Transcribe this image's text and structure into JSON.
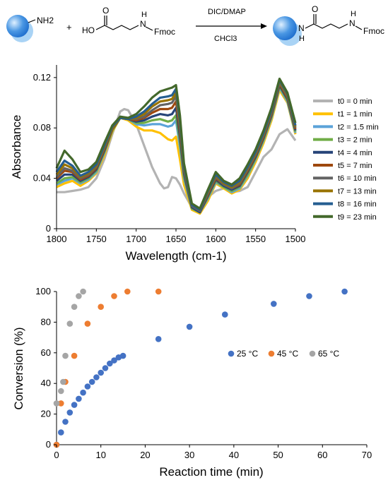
{
  "scheme": {
    "reagent_left": "NH2",
    "plus": "+",
    "acid_ho": "HO",
    "acid_o": "O",
    "acid_nh": "H",
    "acid_n": "N",
    "acid_fmoc": "Fmoc",
    "conditions_top": "DIC/DMAP",
    "conditions_bottom": "CHCl3",
    "product_n": "N",
    "product_h": "H",
    "product_o": "O",
    "product_nh_h": "H",
    "product_nh_n": "N",
    "product_fmoc": "Fmoc",
    "colors": {
      "bead_light": "#a9d3f5",
      "bead_mid": "#4a97e3",
      "bead_dark": "#1f6fce"
    }
  },
  "chart_data": [
    {
      "type": "line",
      "title": "",
      "xlabel": "Wavelength (cm-1)",
      "ylabel": "Absorbance",
      "xlim": [
        1800,
        1500
      ],
      "ylim": [
        0,
        0.13
      ],
      "xticks": [
        "1800",
        "1750",
        "1700",
        "1650",
        "1600",
        "1550",
        "1500"
      ],
      "yticks": [
        "0",
        "0.04",
        "0.08",
        "0.12"
      ],
      "legend_position": "right",
      "series": [
        {
          "name": "t0 = 0 min",
          "color": "#b3b3b3",
          "x": [
            1800,
            1790,
            1780,
            1770,
            1760,
            1750,
            1740,
            1730,
            1720,
            1715,
            1710,
            1700,
            1690,
            1680,
            1670,
            1665,
            1660,
            1655,
            1650,
            1645,
            1640,
            1630,
            1620,
            1610,
            1600,
            1590,
            1580,
            1570,
            1560,
            1550,
            1540,
            1530,
            1520,
            1510,
            1500
          ],
          "y": [
            0.029,
            0.029,
            0.03,
            0.031,
            0.033,
            0.04,
            0.055,
            0.075,
            0.093,
            0.095,
            0.094,
            0.083,
            0.066,
            0.049,
            0.036,
            0.032,
            0.033,
            0.041,
            0.04,
            0.035,
            0.028,
            0.017,
            0.013,
            0.025,
            0.03,
            0.032,
            0.029,
            0.03,
            0.033,
            0.045,
            0.057,
            0.063,
            0.075,
            0.079,
            0.07
          ]
        },
        {
          "name": "t1 = 1 min",
          "color": "#ffc000",
          "x": [
            1800,
            1790,
            1780,
            1770,
            1760,
            1750,
            1740,
            1730,
            1720,
            1710,
            1700,
            1690,
            1680,
            1670,
            1660,
            1655,
            1650,
            1645,
            1640,
            1630,
            1620,
            1610,
            1600,
            1590,
            1580,
            1570,
            1560,
            1550,
            1540,
            1530,
            1520,
            1510,
            1500
          ],
          "y": [
            0.033,
            0.036,
            0.038,
            0.034,
            0.038,
            0.044,
            0.058,
            0.077,
            0.088,
            0.086,
            0.081,
            0.078,
            0.078,
            0.076,
            0.071,
            0.07,
            0.073,
            0.055,
            0.035,
            0.015,
            0.012,
            0.022,
            0.036,
            0.032,
            0.028,
            0.031,
            0.04,
            0.053,
            0.068,
            0.086,
            0.11,
            0.1,
            0.075
          ]
        },
        {
          "name": "t2 = 1.5 min",
          "color": "#5ba3d9",
          "x": [
            1800,
            1790,
            1780,
            1770,
            1760,
            1750,
            1740,
            1730,
            1720,
            1710,
            1700,
            1690,
            1680,
            1670,
            1660,
            1655,
            1650,
            1645,
            1640,
            1630,
            1620,
            1610,
            1600,
            1590,
            1580,
            1570,
            1560,
            1550,
            1540,
            1530,
            1520,
            1510,
            1500
          ],
          "y": [
            0.035,
            0.038,
            0.04,
            0.036,
            0.039,
            0.045,
            0.06,
            0.078,
            0.088,
            0.087,
            0.083,
            0.082,
            0.083,
            0.083,
            0.081,
            0.082,
            0.086,
            0.065,
            0.04,
            0.016,
            0.013,
            0.024,
            0.037,
            0.033,
            0.029,
            0.032,
            0.042,
            0.055,
            0.07,
            0.088,
            0.112,
            0.101,
            0.076
          ]
        },
        {
          "name": "t3 = 2 min",
          "color": "#70ad47",
          "x": [
            1800,
            1790,
            1780,
            1770,
            1760,
            1750,
            1740,
            1730,
            1720,
            1710,
            1700,
            1690,
            1680,
            1670,
            1660,
            1655,
            1650,
            1645,
            1640,
            1630,
            1620,
            1610,
            1600,
            1590,
            1580,
            1570,
            1560,
            1550,
            1540,
            1530,
            1520,
            1510,
            1500
          ],
          "y": [
            0.036,
            0.04,
            0.041,
            0.037,
            0.04,
            0.046,
            0.061,
            0.078,
            0.088,
            0.087,
            0.084,
            0.084,
            0.086,
            0.087,
            0.085,
            0.086,
            0.09,
            0.069,
            0.042,
            0.016,
            0.013,
            0.025,
            0.038,
            0.033,
            0.03,
            0.033,
            0.043,
            0.056,
            0.071,
            0.089,
            0.113,
            0.102,
            0.077
          ]
        },
        {
          "name": "t4 = 4 min",
          "color": "#264478",
          "x": [
            1800,
            1790,
            1780,
            1770,
            1760,
            1750,
            1740,
            1730,
            1720,
            1710,
            1700,
            1690,
            1680,
            1670,
            1660,
            1655,
            1650,
            1645,
            1640,
            1630,
            1620,
            1610,
            1600,
            1590,
            1580,
            1570,
            1560,
            1550,
            1540,
            1530,
            1520,
            1510,
            1500
          ],
          "y": [
            0.038,
            0.043,
            0.043,
            0.038,
            0.041,
            0.047,
            0.062,
            0.079,
            0.088,
            0.087,
            0.085,
            0.086,
            0.089,
            0.091,
            0.09,
            0.091,
            0.096,
            0.073,
            0.044,
            0.017,
            0.013,
            0.026,
            0.039,
            0.034,
            0.031,
            0.034,
            0.045,
            0.057,
            0.072,
            0.09,
            0.114,
            0.103,
            0.078
          ]
        },
        {
          "name": "t5 = 7 min",
          "color": "#9e480e",
          "x": [
            1800,
            1790,
            1780,
            1770,
            1760,
            1750,
            1740,
            1730,
            1720,
            1710,
            1700,
            1690,
            1680,
            1670,
            1660,
            1655,
            1650,
            1645,
            1640,
            1630,
            1620,
            1610,
            1600,
            1590,
            1580,
            1570,
            1560,
            1550,
            1540,
            1530,
            1520,
            1510,
            1500
          ],
          "y": [
            0.04,
            0.046,
            0.045,
            0.039,
            0.042,
            0.048,
            0.063,
            0.079,
            0.088,
            0.087,
            0.086,
            0.088,
            0.092,
            0.095,
            0.095,
            0.096,
            0.101,
            0.077,
            0.046,
            0.018,
            0.014,
            0.027,
            0.04,
            0.035,
            0.032,
            0.035,
            0.046,
            0.058,
            0.073,
            0.091,
            0.115,
            0.104,
            0.079
          ]
        },
        {
          "name": "t6 = 10 min",
          "color": "#636363",
          "x": [
            1800,
            1790,
            1780,
            1770,
            1760,
            1750,
            1740,
            1730,
            1720,
            1710,
            1700,
            1690,
            1680,
            1670,
            1660,
            1655,
            1650,
            1645,
            1640,
            1630,
            1620,
            1610,
            1600,
            1590,
            1580,
            1570,
            1560,
            1550,
            1540,
            1530,
            1520,
            1510,
            1500
          ],
          "y": [
            0.041,
            0.048,
            0.046,
            0.04,
            0.043,
            0.049,
            0.064,
            0.08,
            0.088,
            0.087,
            0.087,
            0.089,
            0.094,
            0.098,
            0.099,
            0.1,
            0.105,
            0.08,
            0.047,
            0.018,
            0.014,
            0.028,
            0.041,
            0.035,
            0.032,
            0.036,
            0.047,
            0.059,
            0.074,
            0.092,
            0.116,
            0.105,
            0.08
          ]
        },
        {
          "name": "t7 = 13 min",
          "color": "#997300",
          "x": [
            1800,
            1790,
            1780,
            1770,
            1760,
            1750,
            1740,
            1730,
            1720,
            1710,
            1700,
            1690,
            1680,
            1670,
            1660,
            1655,
            1650,
            1645,
            1640,
            1630,
            1620,
            1610,
            1600,
            1590,
            1580,
            1570,
            1560,
            1550,
            1540,
            1530,
            1520,
            1510,
            1500
          ],
          "y": [
            0.043,
            0.051,
            0.048,
            0.041,
            0.044,
            0.05,
            0.065,
            0.08,
            0.088,
            0.087,
            0.088,
            0.091,
            0.097,
            0.101,
            0.102,
            0.103,
            0.108,
            0.083,
            0.049,
            0.019,
            0.015,
            0.029,
            0.042,
            0.036,
            0.033,
            0.037,
            0.048,
            0.06,
            0.075,
            0.093,
            0.117,
            0.106,
            0.081
          ]
        },
        {
          "name": "t8 = 16 min",
          "color": "#255e91",
          "x": [
            1800,
            1790,
            1780,
            1770,
            1760,
            1750,
            1740,
            1730,
            1720,
            1710,
            1700,
            1690,
            1680,
            1670,
            1660,
            1655,
            1650,
            1645,
            1640,
            1630,
            1620,
            1610,
            1600,
            1590,
            1580,
            1570,
            1560,
            1550,
            1540,
            1530,
            1520,
            1510,
            1500
          ],
          "y": [
            0.045,
            0.054,
            0.05,
            0.042,
            0.045,
            0.051,
            0.066,
            0.081,
            0.088,
            0.087,
            0.089,
            0.093,
            0.099,
            0.104,
            0.105,
            0.106,
            0.111,
            0.086,
            0.05,
            0.019,
            0.015,
            0.03,
            0.043,
            0.037,
            0.034,
            0.038,
            0.049,
            0.061,
            0.076,
            0.094,
            0.118,
            0.107,
            0.082
          ]
        },
        {
          "name": "t9 = 23 min",
          "color": "#43682b",
          "x": [
            1800,
            1790,
            1780,
            1770,
            1760,
            1750,
            1740,
            1730,
            1720,
            1710,
            1700,
            1690,
            1680,
            1670,
            1660,
            1655,
            1650,
            1645,
            1640,
            1630,
            1620,
            1610,
            1600,
            1590,
            1580,
            1570,
            1560,
            1550,
            1540,
            1530,
            1520,
            1510,
            1500
          ],
          "y": [
            0.048,
            0.062,
            0.055,
            0.045,
            0.047,
            0.053,
            0.068,
            0.082,
            0.089,
            0.088,
            0.091,
            0.097,
            0.104,
            0.109,
            0.111,
            0.112,
            0.114,
            0.09,
            0.052,
            0.02,
            0.016,
            0.031,
            0.045,
            0.038,
            0.035,
            0.04,
            0.051,
            0.063,
            0.078,
            0.096,
            0.119,
            0.108,
            0.084
          ]
        }
      ]
    },
    {
      "type": "scatter",
      "title": "",
      "xlabel": "Reaction time (min)",
      "ylabel": "Conversion (%)",
      "xlim": [
        0,
        70
      ],
      "ylim": [
        0,
        100
      ],
      "xticks": [
        "0",
        "10",
        "20",
        "30",
        "40",
        "50",
        "60",
        "70"
      ],
      "yticks": [
        "0",
        "20",
        "40",
        "60",
        "80",
        "100"
      ],
      "legend_position": "center-right",
      "series": [
        {
          "name": "25 °C",
          "color": "#4472c4",
          "x": [
            0,
            1,
            2,
            3,
            4,
            5,
            6,
            7,
            8,
            9,
            10,
            11,
            12,
            13,
            14,
            15,
            23,
            30,
            38,
            49,
            57,
            65
          ],
          "y": [
            0,
            8,
            15,
            21,
            26,
            30,
            34,
            38,
            41,
            44,
            47,
            50,
            53,
            55,
            57,
            58,
            69,
            77,
            85,
            92,
            97,
            100
          ]
        },
        {
          "name": "45 °C",
          "color": "#ed7d31",
          "x": [
            0,
            1,
            2,
            4,
            7,
            10,
            13,
            16,
            23
          ],
          "y": [
            0,
            27,
            41,
            58,
            79,
            90,
            97,
            100,
            100
          ]
        },
        {
          "name": "65 °C",
          "color": "#a5a5a5",
          "x": [
            0,
            1,
            1.5,
            2,
            3,
            4,
            5,
            6
          ],
          "y": [
            27,
            35,
            41,
            58,
            79,
            90,
            97,
            100
          ]
        }
      ]
    }
  ]
}
